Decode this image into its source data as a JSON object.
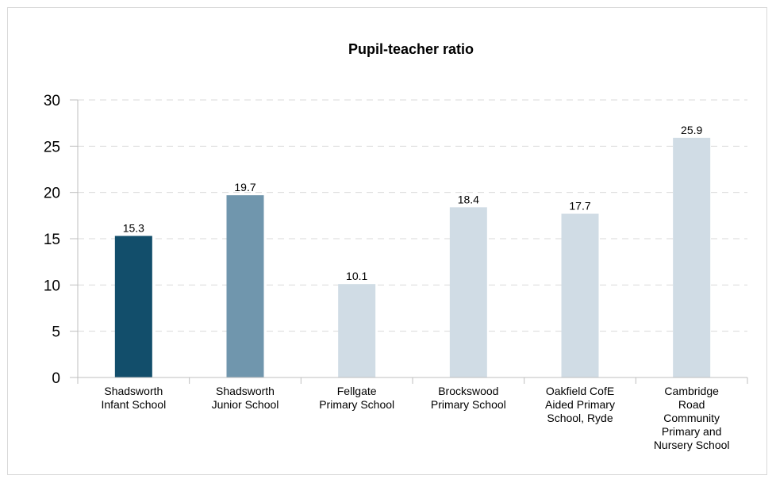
{
  "chart_data": {
    "type": "bar",
    "title": "Pupil-teacher ratio",
    "categories": [
      "Shadsworth Infant School",
      "Shadsworth Junior School",
      "Fellgate Primary School",
      "Brockswood Primary School",
      "Oakfield CofE Aided Primary School, Ryde",
      "Cambridge Road Community Primary and Nursery School"
    ],
    "category_lines": [
      [
        "Shadsworth",
        "Infant School"
      ],
      [
        "Shadsworth",
        "Junior School"
      ],
      [
        "Fellgate",
        "Primary School"
      ],
      [
        "Brockswood",
        "Primary School"
      ],
      [
        "Oakfield CofE",
        "Aided Primary",
        "School, Ryde"
      ],
      [
        "Cambridge",
        "Road",
        "Community",
        "Primary and",
        "Nursery School"
      ]
    ],
    "values": [
      15.3,
      19.7,
      10.1,
      18.4,
      17.7,
      25.9
    ],
    "value_labels": [
      "15.3",
      "19.7",
      "10.1",
      "18.4",
      "17.7",
      "25.9"
    ],
    "bar_colors": [
      "#124e6b",
      "#7096ad",
      "#d0dce5",
      "#d0dce5",
      "#d0dce5",
      "#d0dce5"
    ],
    "ylim": [
      0,
      30
    ],
    "yticks": [
      0,
      5,
      10,
      15,
      20,
      25,
      30
    ],
    "ytick_labels": [
      "0",
      "5",
      "10",
      "15",
      "20",
      "25",
      "30"
    ],
    "grid": true,
    "legend": "none",
    "xlabel": "",
    "ylabel": ""
  }
}
